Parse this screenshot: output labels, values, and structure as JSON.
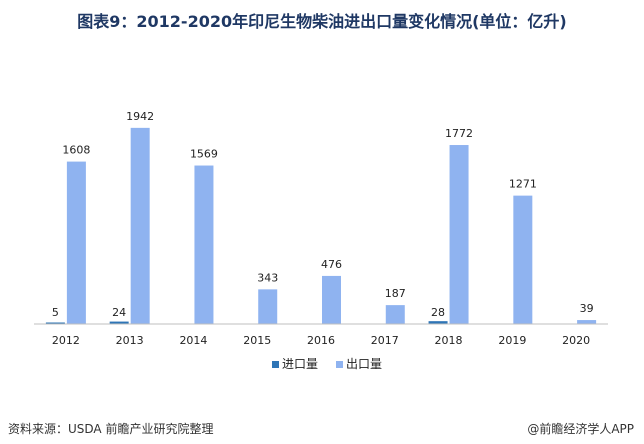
{
  "title": "图表9：2012-2020年印尼生物柴油进出口量变化情况(单位：亿升)",
  "footer": {
    "source": "资料来源：USDA 前瞻产业研究院整理",
    "brand": "@前瞻经济学人APP"
  },
  "chart_data": {
    "type": "bar",
    "categories": [
      "2012",
      "2013",
      "2014",
      "2015",
      "2016",
      "2017",
      "2018",
      "2019",
      "2020"
    ],
    "series": [
      {
        "name": "进口量",
        "color": "#2e75b6",
        "values": [
          5,
          24,
          null,
          null,
          null,
          null,
          28,
          null,
          null
        ],
        "labels": [
          "5",
          "24",
          "",
          "",
          "",
          "",
          "28",
          "",
          ""
        ]
      },
      {
        "name": "出口量",
        "color": "#8fb3f0",
        "values": [
          1608,
          1942,
          1569,
          343,
          476,
          187,
          1772,
          1271,
          39
        ],
        "labels": [
          "1608",
          "1942",
          "1569",
          "343",
          "476",
          "187",
          "1772",
          "1271",
          "39"
        ]
      }
    ],
    "ylim": [
      0,
      2000
    ],
    "grid": false,
    "legend_position": "bottom"
  }
}
